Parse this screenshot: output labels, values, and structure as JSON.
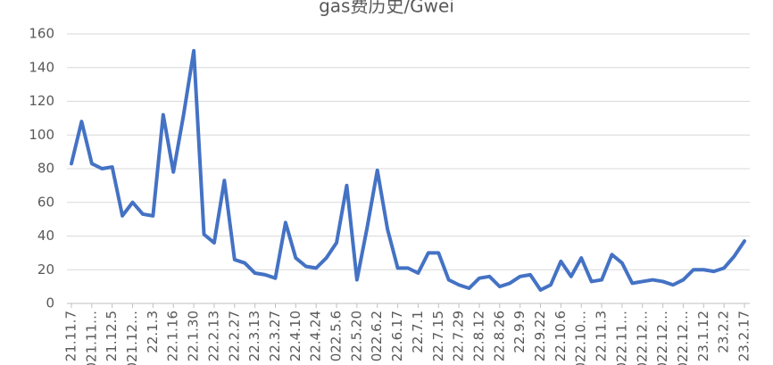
{
  "chart_data": {
    "type": "line",
    "title": "gas费历史/Gwei",
    "categories": [
      "21.11.7",
      null,
      "021.11…",
      null,
      "21.12.5",
      null,
      "021.12…",
      null,
      "22.1.3",
      null,
      "22.1.16",
      null,
      "22.1.30",
      null,
      "22.2.13",
      null,
      "22.2.27",
      null,
      "22.3.13",
      null,
      "22.3.27",
      null,
      "22.4.10",
      null,
      "22.4.24",
      null,
      "022.5.6",
      null,
      "22.5.20",
      null,
      "022.6.2",
      null,
      "22.6.17",
      null,
      "22.7.1",
      null,
      "22.7.15",
      null,
      "22.7.29",
      null,
      "22.8.12",
      null,
      "22.8.26",
      null,
      "22.9.9",
      null,
      "22.9.22",
      null,
      "22.10.6",
      null,
      "022.10…",
      null,
      "22.11.3",
      null,
      "022.11…",
      null,
      "022.12…",
      null,
      "022.12…",
      null,
      "022.12…",
      null,
      "23.1.12",
      null,
      "23.2.2",
      null,
      "23.2.17"
    ],
    "series": [
      {
        "color": "#4472c4",
        "values": [
          83,
          108,
          83,
          80,
          81,
          52,
          60,
          53,
          52,
          112,
          78,
          112,
          150,
          41,
          36,
          73,
          26,
          24,
          18,
          17,
          15,
          48,
          27,
          22,
          21,
          27,
          36,
          70,
          14,
          45,
          79,
          44,
          21,
          21,
          18,
          30,
          30,
          14,
          11,
          9,
          15,
          16,
          10,
          12,
          16,
          17,
          8,
          11,
          25,
          16,
          27,
          13,
          14,
          29,
          24,
          12,
          13,
          14,
          13,
          11,
          14,
          20,
          20,
          19,
          21,
          28,
          37
        ]
      }
    ],
    "ylim": [
      0,
      160
    ],
    "yticks": [
      0,
      20,
      40,
      60,
      80,
      100,
      120,
      140,
      160
    ],
    "grid": true
  }
}
